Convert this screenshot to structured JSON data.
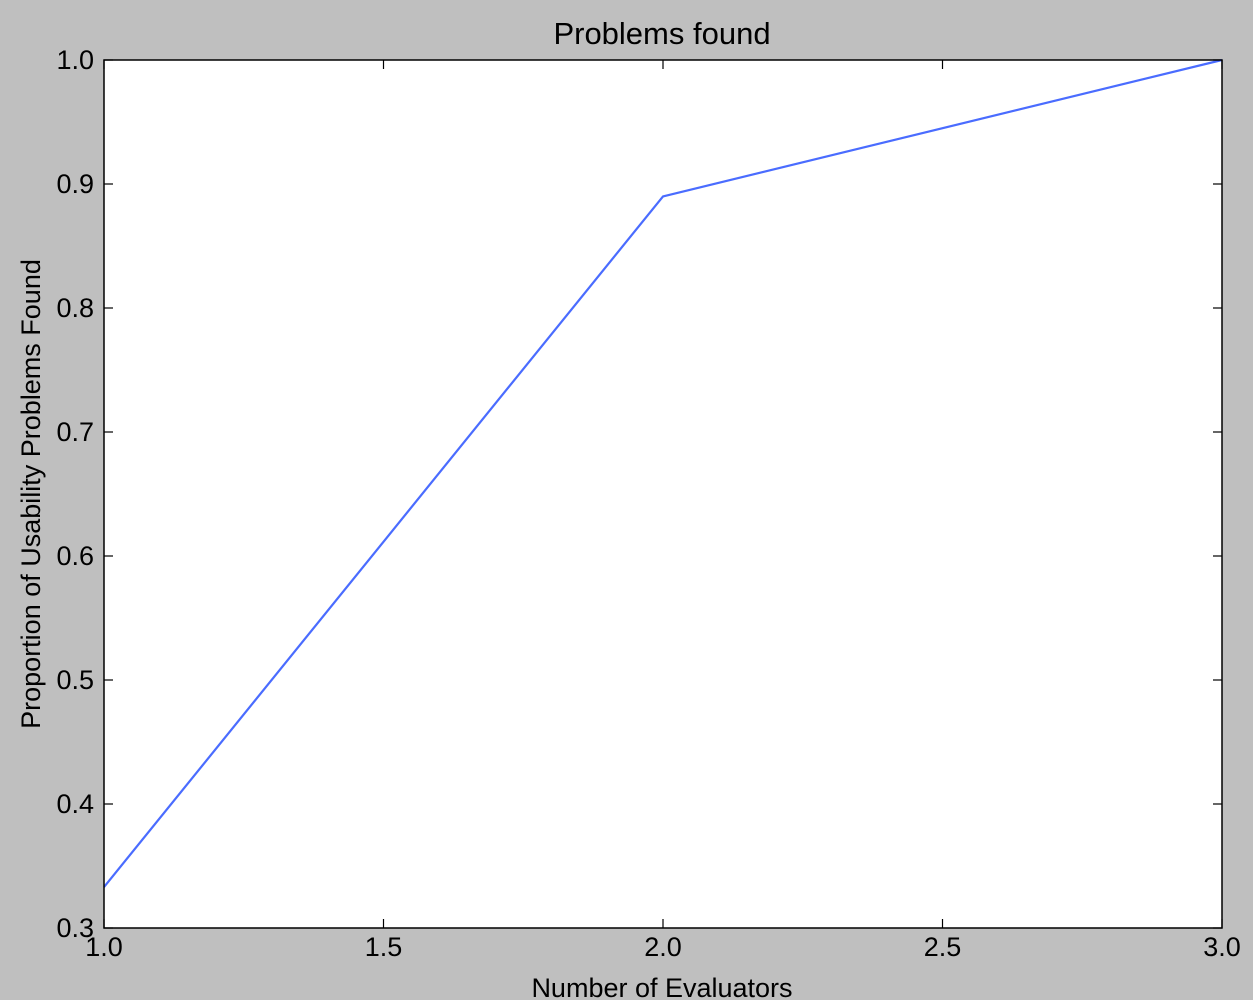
{
  "chart_data": {
    "type": "line",
    "title": "Problems found",
    "xlabel": "Number of Evaluators",
    "ylabel": "Proportion of Usability Problems Found",
    "xlim": [
      1.0,
      3.0
    ],
    "ylim": [
      0.3,
      1.0
    ],
    "xticks": [
      "1.0",
      "1.5",
      "2.0",
      "2.5",
      "3.0"
    ],
    "yticks": [
      "0.3",
      "0.4",
      "0.5",
      "0.6",
      "0.7",
      "0.8",
      "0.9",
      "1.0"
    ],
    "grid": false,
    "legend": "none",
    "series": [
      {
        "x": [
          1.0,
          2.0,
          3.0
        ],
        "y": [
          0.333,
          0.89,
          1.0
        ],
        "color": "#4a6cff"
      }
    ]
  },
  "colors": {
    "figure_background": "#bfbfbf",
    "axes_background": "#ffffff",
    "line": "#4a6cff"
  }
}
